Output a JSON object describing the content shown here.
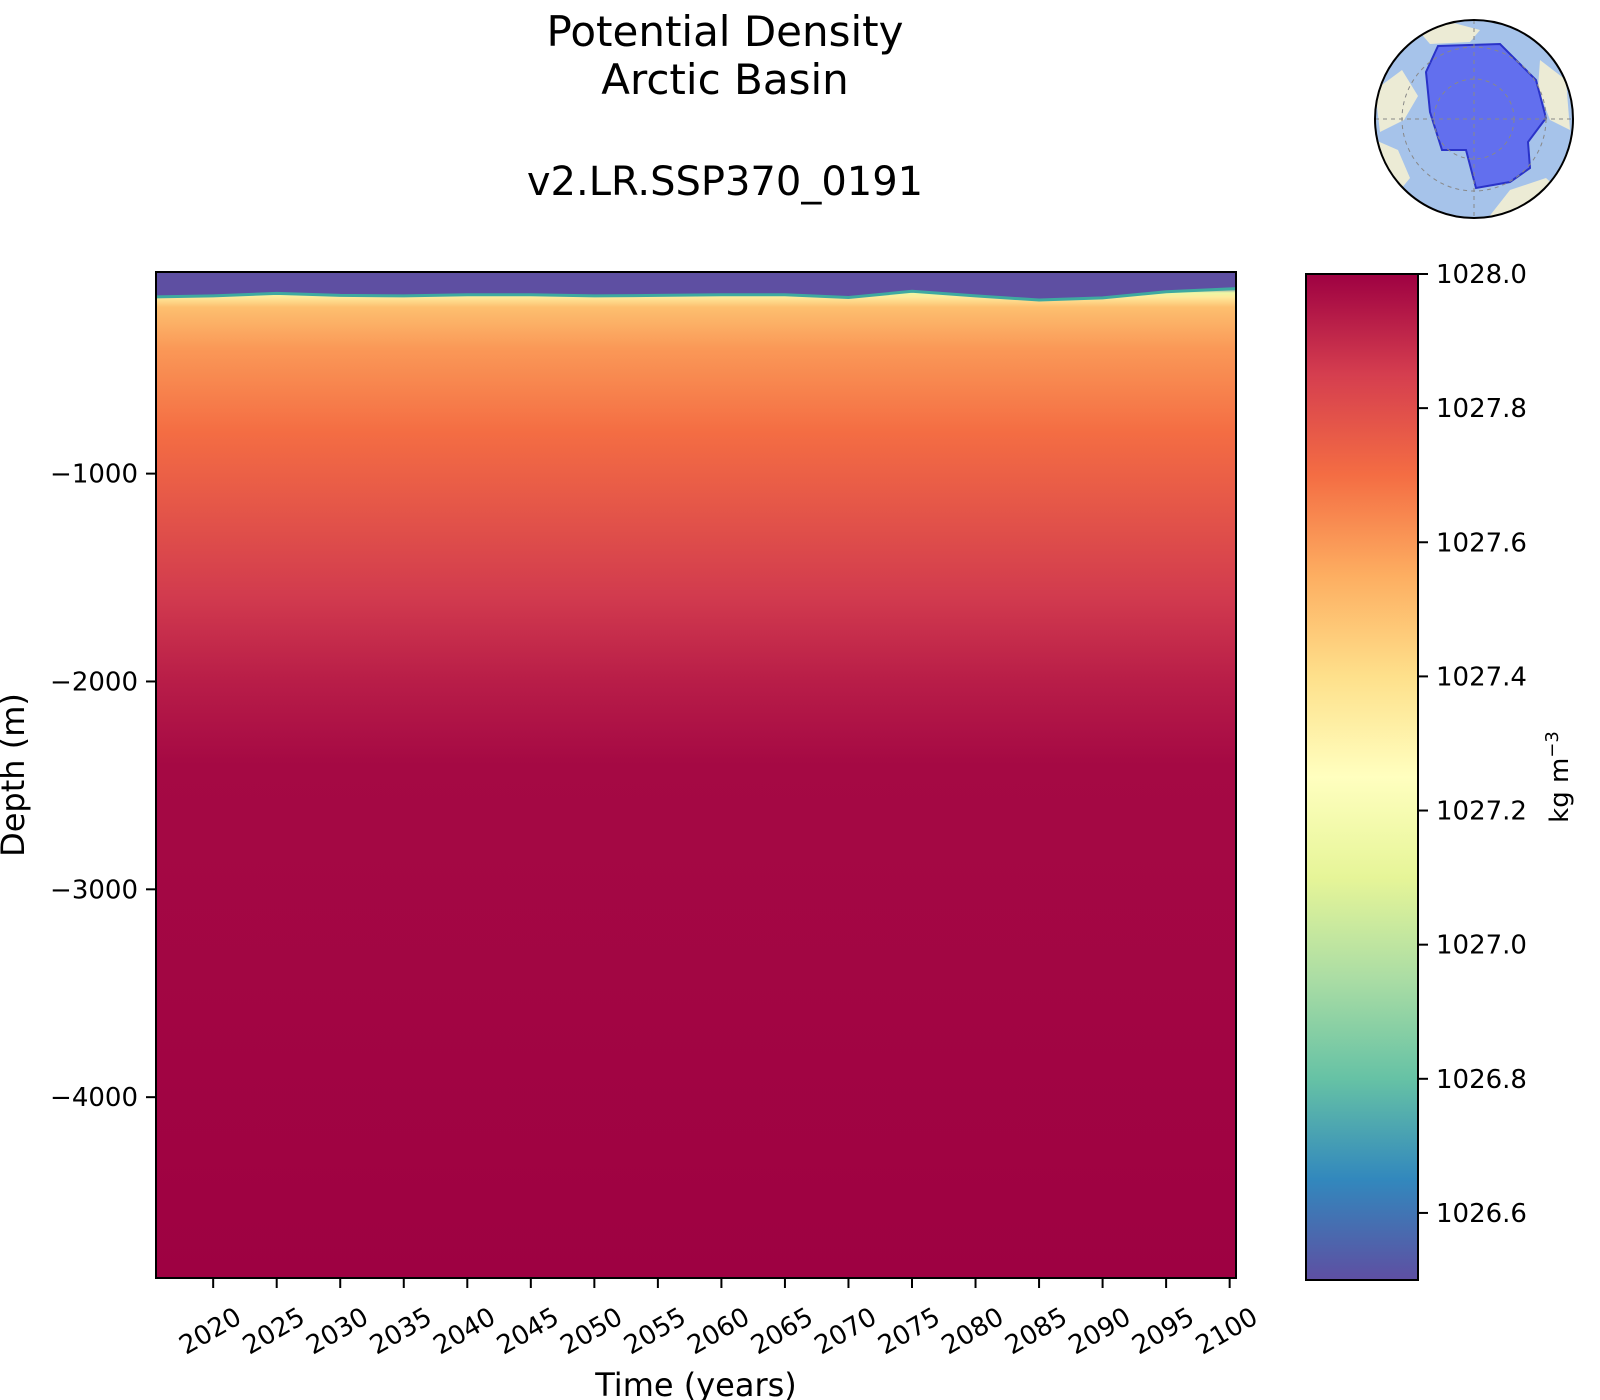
{
  "chart_data": {
    "type": "heatmap",
    "title": "Potential Density",
    "region": "Arctic Basin",
    "subtitle": "v2.LR.SSP370_0191",
    "xlabel": "Time (years)",
    "ylabel": "Depth (m)",
    "xlim": [
      2015.5,
      2100.5
    ],
    "ylim": [
      -4870,
      -30
    ],
    "x_ticks": [
      "2020",
      "2025",
      "2030",
      "2035",
      "2040",
      "2045",
      "2050",
      "2055",
      "2060",
      "2065",
      "2070",
      "2075",
      "2080",
      "2085",
      "2090",
      "2095",
      "2100"
    ],
    "y_ticks": [
      -1000,
      -2000,
      -3000,
      -4000
    ],
    "y_tick_labels": [
      "−1000",
      "−2000",
      "−3000",
      "−4000"
    ],
    "colorbar": {
      "label_base": "kg m",
      "label_exp": "−3",
      "range": [
        1026.5,
        1028.0
      ],
      "ticks": [
        "1028.0",
        "1027.8",
        "1027.6",
        "1027.4",
        "1027.2",
        "1027.0",
        "1026.8",
        "1026.6"
      ],
      "colormap": "Spectral_r"
    },
    "profile": {
      "depth": [
        -30,
        -100,
        -130,
        -150,
        -200,
        -400,
        -800,
        -1200,
        -1600,
        -2000,
        -2400,
        -4870
      ],
      "density": [
        1026.5,
        1026.55,
        1027.15,
        1027.35,
        1027.5,
        1027.6,
        1027.7,
        1027.78,
        1027.86,
        1027.93,
        1027.98,
        1028.0
      ]
    },
    "mixed_layer_base": {
      "x": [
        2015.5,
        2020,
        2025,
        2030,
        2035,
        2040,
        2045,
        2050,
        2055,
        2060,
        2065,
        2070,
        2075,
        2080,
        2085,
        2090,
        2095,
        2100.5
      ],
      "depth": [
        -145,
        -140,
        -128,
        -138,
        -140,
        -135,
        -135,
        -140,
        -138,
        -135,
        -135,
        -148,
        -118,
        -140,
        -160,
        -150,
        -120,
        -105
      ]
    },
    "colors": {
      "low": "#5e4fa2",
      "mid": "#ffffbf",
      "high": "#9e0142"
    }
  },
  "inset_map": {
    "icon": "polar-region-map-icon",
    "ocean": "#a6c3ea",
    "land": "#ecebd5",
    "region_fill": "#5b66ee"
  }
}
